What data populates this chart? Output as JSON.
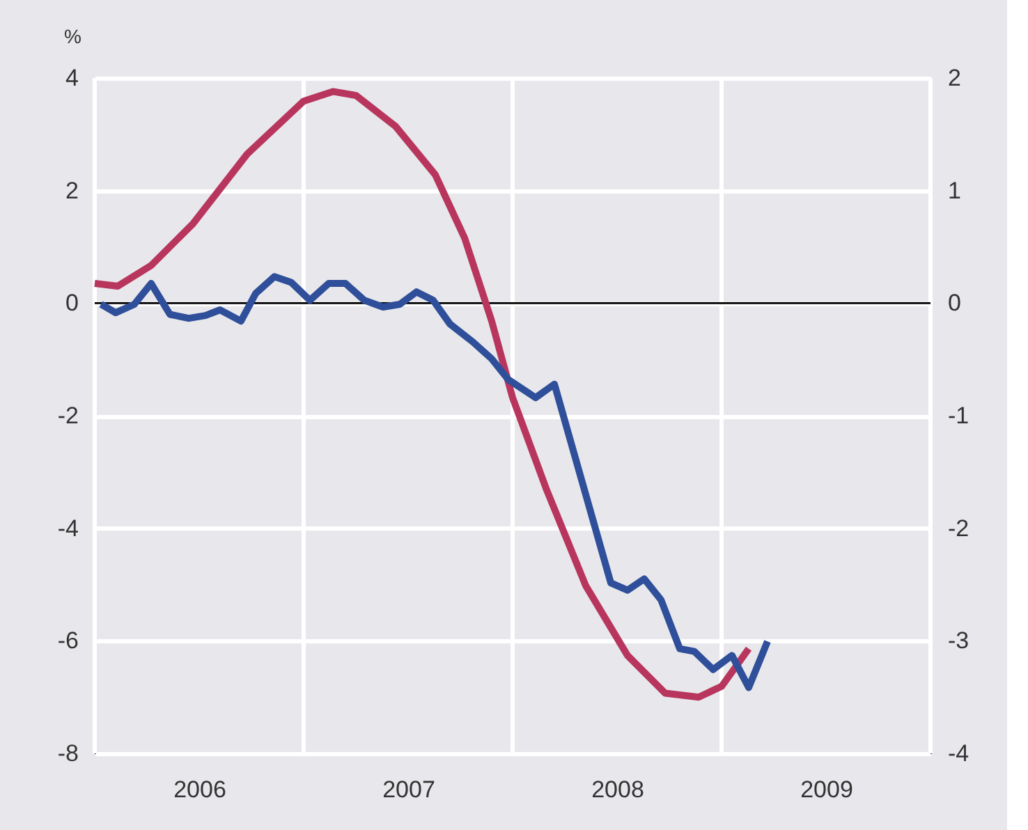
{
  "chart_data": {
    "type": "line",
    "ylabel": "%",
    "x": [
      2006.0,
      2006.11,
      2006.27,
      2006.47,
      2006.73,
      2007.0,
      2007.14,
      2007.25,
      2007.44,
      2007.63,
      2007.77,
      2007.9,
      2008.0,
      2008.16,
      2008.35,
      2008.55,
      2008.73,
      2008.89,
      2009.0,
      2009.13
    ],
    "series": [
      {
        "color": "#b8365e",
        "values": [
          0.35,
          0.3,
          0.67,
          1.41,
          2.65,
          3.59,
          3.76,
          3.69,
          3.14,
          2.28,
          1.16,
          -0.32,
          -1.68,
          -3.29,
          -5.02,
          -6.26,
          -6.93,
          -7.0,
          -6.81,
          -6.14
        ]
      },
      {
        "color": "#2f4f9a",
        "x": [
          2006.03,
          2006.1,
          2006.19,
          2006.27,
          2006.36,
          2006.45,
          2006.53,
          2006.6,
          2006.7,
          2006.77,
          2006.86,
          2006.94,
          2007.03,
          2007.12,
          2007.2,
          2007.29,
          2007.38,
          2007.46,
          2007.54,
          2007.62,
          2007.7,
          2007.81,
          2007.9,
          2007.98,
          2008.11,
          2008.2,
          2008.47,
          2008.55,
          2008.63,
          2008.71,
          2008.8,
          2008.87,
          2008.96,
          2009.05,
          2009.13,
          2009.22
        ],
        "values": [
          -0.02,
          -0.17,
          -0.02,
          0.35,
          -0.2,
          -0.27,
          -0.22,
          -0.12,
          -0.32,
          0.17,
          0.47,
          0.37,
          0.05,
          0.35,
          0.35,
          0.05,
          -0.07,
          -0.02,
          0.2,
          0.05,
          -0.37,
          -0.69,
          -0.99,
          -1.36,
          -1.68,
          -1.44,
          -4.97,
          -5.1,
          -4.9,
          -5.27,
          -6.14,
          -6.19,
          -6.51,
          -6.26,
          -6.83,
          -6.01
        ]
      }
    ],
    "xlim": [
      2006,
      2010
    ],
    "xticks": [
      {
        "value": 2006,
        "label": null
      },
      {
        "value": 2006.5,
        "label": "2006"
      },
      {
        "value": 2007,
        "label": null
      },
      {
        "value": 2007.5,
        "label": "2007"
      },
      {
        "value": 2008,
        "label": null
      },
      {
        "value": 2008.5,
        "label": "2008"
      },
      {
        "value": 2009,
        "label": null
      },
      {
        "value": 2009.5,
        "label": "2009"
      },
      {
        "value": 2010,
        "label": null
      }
    ],
    "ylim": [
      -8,
      4
    ],
    "yticks": [
      -8,
      -6,
      -4,
      -2,
      0,
      2,
      4
    ],
    "y2lim": [
      -4,
      2
    ],
    "y2ticks": [
      -4,
      -3,
      -2,
      -1,
      0,
      1,
      2
    ],
    "ref_lines": [
      {
        "axis": "y",
        "value": 0,
        "color": "#000000"
      }
    ],
    "grid": true,
    "line_style": "solid",
    "marker": "none"
  }
}
